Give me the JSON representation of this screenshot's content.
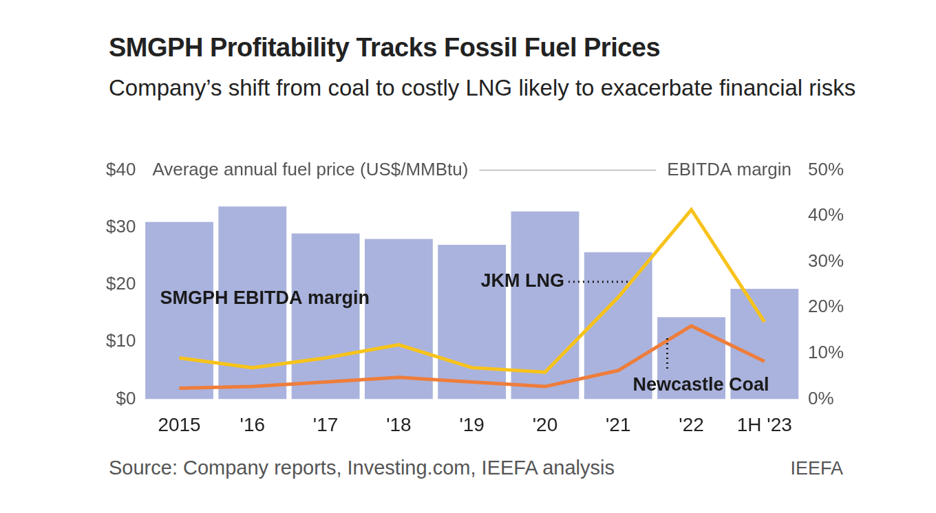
{
  "chart_data": {
    "type": "bar",
    "title": "SMGPH Profitability Tracks Fossil Fuel Prices",
    "subtitle": "Company’s shift from coal to costly LNG likely to exacerbate financial risks",
    "y_label": "Average annual fuel price (US$/MMBtu)",
    "y2_label": "EBITDA margin",
    "categories": [
      "2015",
      "'16",
      "'17",
      "'18",
      "'19",
      "'20",
      "'21",
      "'22",
      "1H '23"
    ],
    "series": [
      {
        "name": "SMGPH EBITDA margin",
        "type": "bar",
        "axis": "y2",
        "color": "#aab3dd",
        "values": [
          38.7,
          42.1,
          36.2,
          35.0,
          33.7,
          41.0,
          32.1,
          17.9,
          24.1
        ]
      },
      {
        "name": "JKM LNG",
        "type": "line",
        "color": "#f7c31b",
        "values": [
          7.2,
          5.5,
          7.2,
          9.5,
          5.5,
          4.7,
          17.8,
          33.1,
          13.5
        ]
      },
      {
        "name": "Newcastle Coal",
        "type": "line",
        "color": "#ee7d3b",
        "values": [
          1.9,
          2.2,
          3.0,
          3.8,
          3.0,
          2.2,
          5.0,
          12.8,
          6.6
        ]
      }
    ],
    "ylim": [
      0,
      40
    ],
    "yticks": [
      {
        "value": 0,
        "label": "$0"
      },
      {
        "value": 10,
        "label": "$10"
      },
      {
        "value": 20,
        "label": "$20"
      },
      {
        "value": 30,
        "label": "$30"
      },
      {
        "value": 40,
        "label": "$40"
      }
    ],
    "y2lim": [
      0,
      50
    ],
    "y2ticks": [
      {
        "value": 0,
        "label": "0%"
      },
      {
        "value": 10,
        "label": "10%"
      },
      {
        "value": 20,
        "label": "20%"
      },
      {
        "value": 30,
        "label": "30%"
      },
      {
        "value": 40,
        "label": "40%"
      },
      {
        "value": 50,
        "label": "50%"
      }
    ],
    "grid": false,
    "source": "Source: Company reports, Investing.com, IEEFA analysis",
    "credit": "IEEFA"
  }
}
